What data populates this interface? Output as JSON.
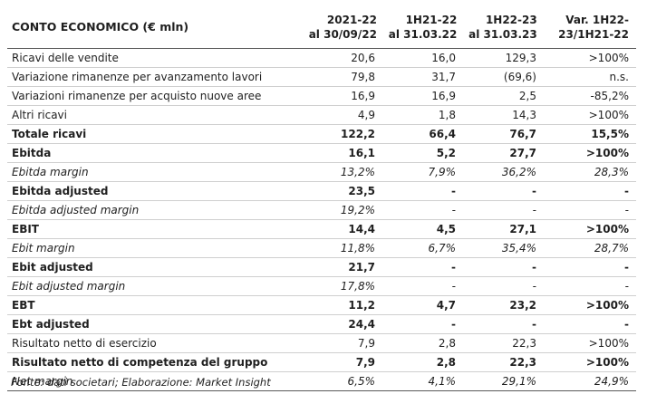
{
  "table": {
    "headers": [
      "CONTO ECONOMICO (€ mln)",
      [
        "2021-22",
        "al 30/09/22"
      ],
      [
        "1H21-22",
        "al 31.03.22"
      ],
      [
        "1H22-23",
        "al 31.03.23"
      ],
      [
        "Var. 1H22-",
        "23/1H21-22"
      ]
    ],
    "rows": [
      {
        "label": "Ricavi delle vendite",
        "v": [
          "20,6",
          "16,0",
          "129,3",
          ">100%"
        ],
        "style": "normal"
      },
      {
        "label": "Variazione rimanenze per avanzamento lavori",
        "v": [
          "79,8",
          "31,7",
          "(69,6)",
          "n.s."
        ],
        "style": "normal"
      },
      {
        "label": "Variazioni rimanenze per acquisto nuove aree",
        "v": [
          "16,9",
          "16,9",
          "2,5",
          "-85,2%"
        ],
        "style": "normal"
      },
      {
        "label": "Altri ricavi",
        "v": [
          "4,9",
          "1,8",
          "14,3",
          ">100%"
        ],
        "style": "normal"
      },
      {
        "label": "Totale ricavi",
        "v": [
          "122,2",
          "66,4",
          "76,7",
          "15,5%"
        ],
        "style": "bold"
      },
      {
        "label": "Ebitda",
        "v": [
          "16,1",
          "5,2",
          "27,7",
          ">100%"
        ],
        "style": "bold"
      },
      {
        "label": "Ebitda margin",
        "v": [
          "13,2%",
          "7,9%",
          "36,2%",
          "28,3%"
        ],
        "style": "italic"
      },
      {
        "label": "Ebitda adjusted",
        "v": [
          "23,5",
          "-",
          "-",
          "-"
        ],
        "style": "bold"
      },
      {
        "label": "Ebitda adjusted margin",
        "v": [
          "19,2%",
          "-",
          "-",
          "-"
        ],
        "style": "italic"
      },
      {
        "label": "EBIT",
        "v": [
          "14,4",
          "4,5",
          "27,1",
          ">100%"
        ],
        "style": "bold"
      },
      {
        "label": "Ebit margin",
        "v": [
          "11,8%",
          "6,7%",
          "35,4%",
          "28,7%"
        ],
        "style": "italic"
      },
      {
        "label": "Ebit adjusted",
        "v": [
          "21,7",
          "-",
          "-",
          "-"
        ],
        "style": "bold"
      },
      {
        "label": "Ebit adjusted margin",
        "v": [
          "17,8%",
          "-",
          "-",
          "-"
        ],
        "style": "italic"
      },
      {
        "label": "EBT",
        "v": [
          "11,2",
          "4,7",
          "23,2",
          ">100%"
        ],
        "style": "bold"
      },
      {
        "label": "Ebt adjusted",
        "v": [
          "24,4",
          "-",
          "-",
          "-"
        ],
        "style": "bold"
      },
      {
        "label": "Risultato netto di esercizio",
        "v": [
          "7,9",
          "2,8",
          "22,3",
          ">100%"
        ],
        "style": "normal"
      },
      {
        "label": "Risultato netto di competenza del gruppo",
        "v": [
          "7,9",
          "2,8",
          "22,3",
          ">100%"
        ],
        "style": "bold"
      },
      {
        "label": "Net margin",
        "v": [
          "6,5%",
          "4,1%",
          "29,1%",
          "24,9%"
        ],
        "style": "italic"
      }
    ]
  },
  "source": "Fonte: dati societari; Elaborazione: Market Insight"
}
